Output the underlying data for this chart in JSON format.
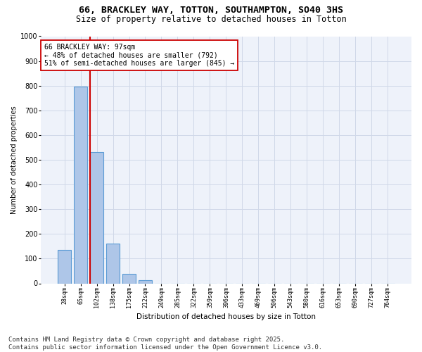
{
  "title_line1": "66, BRACKLEY WAY, TOTTON, SOUTHAMPTON, SO40 3HS",
  "title_line2": "Size of property relative to detached houses in Totton",
  "xlabel": "Distribution of detached houses by size in Totton",
  "ylabel": "Number of detached properties",
  "categories": [
    "28sqm",
    "65sqm",
    "102sqm",
    "138sqm",
    "175sqm",
    "212sqm",
    "249sqm",
    "285sqm",
    "322sqm",
    "359sqm",
    "396sqm",
    "433sqm",
    "469sqm",
    "506sqm",
    "543sqm",
    "580sqm",
    "616sqm",
    "653sqm",
    "690sqm",
    "727sqm",
    "764sqm"
  ],
  "values": [
    135,
    795,
    530,
    160,
    38,
    12,
    0,
    0,
    0,
    0,
    0,
    0,
    0,
    0,
    0,
    0,
    0,
    0,
    0,
    0,
    0
  ],
  "bar_color": "#aec6e8",
  "bar_edgecolor": "#5b9bd5",
  "bar_linewidth": 0.8,
  "vline_x": 1.57,
  "vline_color": "#cc0000",
  "annotation_text": "66 BRACKLEY WAY: 97sqm\n← 48% of detached houses are smaller (792)\n51% of semi-detached houses are larger (845) →",
  "annotation_box_color": "#ffffff",
  "annotation_box_edgecolor": "#cc0000",
  "annotation_fontsize": 7,
  "ylim": [
    0,
    1000
  ],
  "yticks": [
    0,
    100,
    200,
    300,
    400,
    500,
    600,
    700,
    800,
    900,
    1000
  ],
  "grid_color": "#d0d8e8",
  "bg_color": "#eef2fa",
  "footer_line1": "Contains HM Land Registry data © Crown copyright and database right 2025.",
  "footer_line2": "Contains public sector information licensed under the Open Government Licence v3.0.",
  "footer_fontsize": 6.5,
  "title1_fontsize": 9.5,
  "title2_fontsize": 8.5,
  "xlabel_fontsize": 7.5,
  "ylabel_fontsize": 7,
  "ytick_fontsize": 7,
  "xtick_fontsize": 6
}
